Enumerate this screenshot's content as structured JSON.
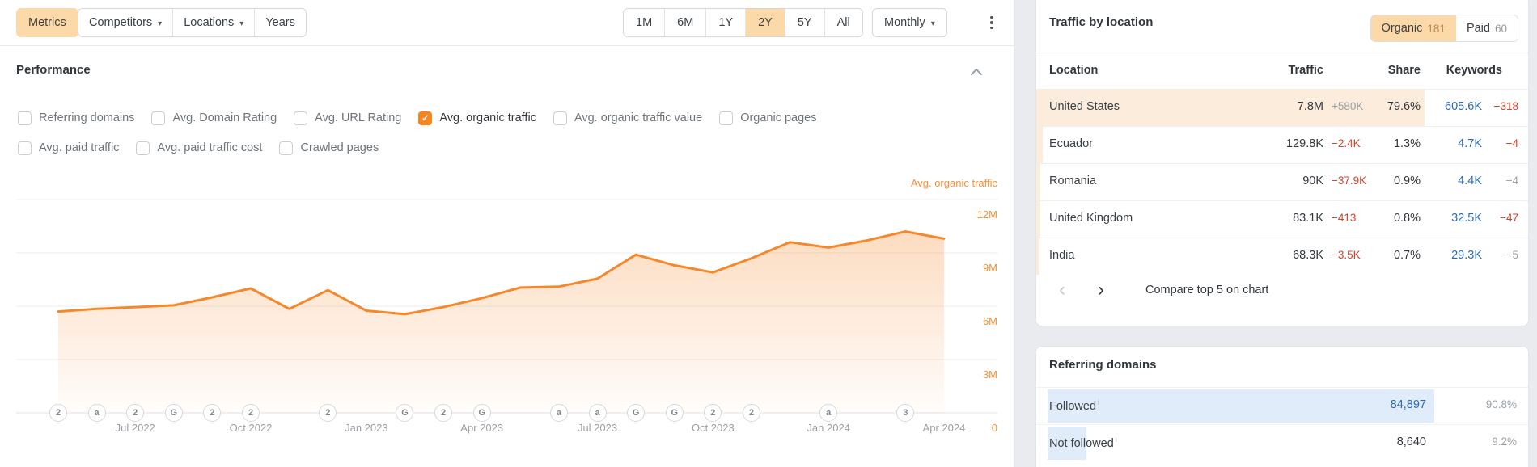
{
  "toolbar": {
    "metrics_label": "Metrics",
    "filters": [
      {
        "label": "Competitors",
        "has_caret": true
      },
      {
        "label": "Locations",
        "has_caret": true
      },
      {
        "label": "Years",
        "has_caret": false
      }
    ],
    "ranges": [
      "1M",
      "6M",
      "1Y",
      "2Y",
      "5Y",
      "All"
    ],
    "selected_range": "2Y",
    "granularity_label": "Monthly"
  },
  "performance": {
    "title": "Performance",
    "metrics_row1": [
      {
        "label": "Referring domains",
        "checked": false
      },
      {
        "label": "Avg. Domain Rating",
        "checked": false
      },
      {
        "label": "Avg. URL Rating",
        "checked": false
      },
      {
        "label": "Avg. organic traffic",
        "checked": true
      },
      {
        "label": "Avg. organic traffic value",
        "checked": false
      },
      {
        "label": "Organic pages",
        "checked": false
      }
    ],
    "metrics_row2": [
      {
        "label": "Avg. paid traffic",
        "checked": false
      },
      {
        "label": "Avg. paid traffic cost",
        "checked": false
      },
      {
        "label": "Crawled pages",
        "checked": false
      }
    ]
  },
  "chart_data": {
    "type": "area",
    "legend": "Avg. organic traffic",
    "ylabel": "",
    "xlabel": "",
    "ylim_millions": [
      0,
      12
    ],
    "grid": true,
    "line_color": "#f6882c",
    "x": [
      "May 2022",
      "Jun 2022",
      "Jul 2022",
      "Aug 2022",
      "Sep 2022",
      "Oct 2022",
      "Nov 2022",
      "Dec 2022",
      "Jan 2023",
      "Feb 2023",
      "Mar 2023",
      "Apr 2023",
      "May 2023",
      "Jun 2023",
      "Jul 2023",
      "Aug 2023",
      "Sep 2023",
      "Oct 2023",
      "Nov 2023",
      "Dec 2023",
      "Jan 2024",
      "Feb 2024",
      "Mar 2024",
      "Apr 2024"
    ],
    "values_millions": [
      5.7,
      5.85,
      5.95,
      6.05,
      6.5,
      7.0,
      5.85,
      6.9,
      5.75,
      5.55,
      5.95,
      6.45,
      7.05,
      7.1,
      7.55,
      8.9,
      8.3,
      7.9,
      8.7,
      9.6,
      9.3,
      9.7,
      10.2,
      9.8
    ],
    "y_ticks": [
      {
        "label": "12M",
        "value_millions": 12
      },
      {
        "label": "9M",
        "value_millions": 9
      },
      {
        "label": "6M",
        "value_millions": 6
      },
      {
        "label": "3M",
        "value_millions": 3
      },
      {
        "label": "0",
        "value_millions": 0
      }
    ],
    "x_tick_labels": [
      {
        "label": "Jul 2022",
        "month_index": 2
      },
      {
        "label": "Oct 2022",
        "month_index": 5
      },
      {
        "label": "Jan 2023",
        "month_index": 8
      },
      {
        "label": "Apr 2023",
        "month_index": 11
      },
      {
        "label": "Jul 2023",
        "month_index": 14
      },
      {
        "label": "Oct 2023",
        "month_index": 17
      },
      {
        "label": "Jan 2024",
        "month_index": 20
      },
      {
        "label": "Apr 2024",
        "month_index": 23
      }
    ],
    "favicon_markers": [
      {
        "month_index": 0,
        "glyph": "2"
      },
      {
        "month_index": 1,
        "glyph": "a"
      },
      {
        "month_index": 2,
        "glyph": "2"
      },
      {
        "month_index": 3,
        "glyph": "G"
      },
      {
        "month_index": 4,
        "glyph": "2"
      },
      {
        "month_index": 5,
        "glyph": "2"
      },
      {
        "month_index": 7,
        "glyph": "2"
      },
      {
        "month_index": 9,
        "glyph": "G"
      },
      {
        "month_index": 10,
        "glyph": "2"
      },
      {
        "month_index": 11,
        "glyph": "G"
      },
      {
        "month_index": 13,
        "glyph": "a"
      },
      {
        "month_index": 14,
        "glyph": "a"
      },
      {
        "month_index": 15,
        "glyph": "G"
      },
      {
        "month_index": 16,
        "glyph": "G"
      },
      {
        "month_index": 17,
        "glyph": "2"
      },
      {
        "month_index": 18,
        "glyph": "2"
      },
      {
        "month_index": 20,
        "glyph": "a"
      },
      {
        "month_index": 22,
        "glyph": "3"
      }
    ]
  },
  "traffic_by_location": {
    "title": "Traffic by location",
    "tabs": [
      {
        "label": "Organic",
        "count": "181",
        "selected": true
      },
      {
        "label": "Paid",
        "count": "60",
        "selected": false
      }
    ],
    "columns": {
      "location": "Location",
      "traffic": "Traffic",
      "share": "Share",
      "keywords": "Keywords"
    },
    "rows": [
      {
        "location": "United States",
        "traffic": "7.8M",
        "traffic_change": "+580K",
        "traffic_change_dir": "muted",
        "share": "79.6%",
        "share_pct": 79.6,
        "keywords": "605.6K",
        "keywords_change": "−318",
        "keywords_change_dir": "down"
      },
      {
        "location": "Ecuador",
        "traffic": "129.8K",
        "traffic_change": "−2.4K",
        "traffic_change_dir": "down",
        "share": "1.3%",
        "share_pct": 1.3,
        "keywords": "4.7K",
        "keywords_change": "−4",
        "keywords_change_dir": "down"
      },
      {
        "location": "Romania",
        "traffic": "90K",
        "traffic_change": "−37.9K",
        "traffic_change_dir": "down",
        "share": "0.9%",
        "share_pct": 0.9,
        "keywords": "4.4K",
        "keywords_change": "+4",
        "keywords_change_dir": "muted"
      },
      {
        "location": "United Kingdom",
        "traffic": "83.1K",
        "traffic_change": "−413",
        "traffic_change_dir": "down",
        "share": "0.8%",
        "share_pct": 0.8,
        "keywords": "32.5K",
        "keywords_change": "−47",
        "keywords_change_dir": "down"
      },
      {
        "location": "India",
        "traffic": "68.3K",
        "traffic_change": "−3.5K",
        "traffic_change_dir": "down",
        "share": "0.7%",
        "share_pct": 0.7,
        "keywords": "29.3K",
        "keywords_change": "+5",
        "keywords_change_dir": "muted"
      }
    ],
    "pagination": {
      "prev": "‹",
      "next": "›",
      "compare_label": "Compare top 5 on chart"
    }
  },
  "referring_domains": {
    "title": "Referring domains",
    "rows": [
      {
        "label": "Followed",
        "info": "i",
        "value": "84,897",
        "value_is_link": true,
        "pct": "90.8%",
        "bar_pct": 90.8
      },
      {
        "label": "Not followed",
        "info": "i",
        "value": "8,640",
        "value_is_link": false,
        "pct": "9.2%",
        "bar_pct": 9.2
      }
    ]
  },
  "icons": {
    "caret": "▾",
    "check": "✓",
    "kebab": "kebab-menu",
    "collapse": "chevron-up"
  },
  "colors": {
    "accent_orange": "#f6882c",
    "selected_peach": "#fbd9a9",
    "checkbox_orange": "#f7851e",
    "link_blue": "#2e6bb4",
    "negative_red": "#d2432c",
    "muted_gray": "#9aa0a6",
    "share_bar_peach": "#fcecdb",
    "followed_bar_blue": "#e0ecfa"
  }
}
